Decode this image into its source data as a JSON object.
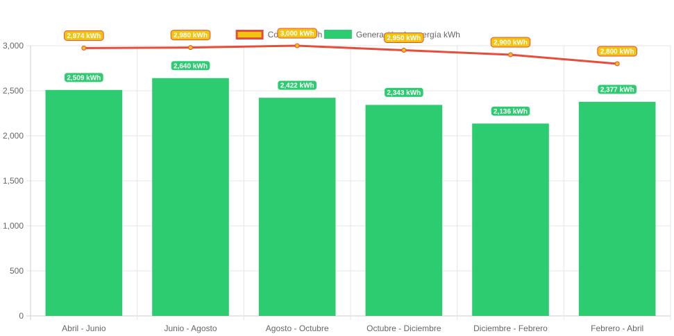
{
  "chart_data": {
    "type": "bar",
    "categories": [
      "Abril - Junio",
      "Junio - Agosto",
      "Agosto - Octubre",
      "Octubre - Diciembre",
      "Diciembre - Febrero",
      "Febrero - Abril"
    ],
    "series": [
      {
        "name": "Consumo kWh",
        "type": "line",
        "values": [
          2974,
          2980,
          3000,
          2950,
          2900,
          2800
        ],
        "labels": [
          "2,974 kWh",
          "2,980 kWh",
          "3,000 kWh",
          "2,950 kWh",
          "2,900 kWh",
          "2,800 kWh"
        ],
        "color": "#e74c3c",
        "fill": "#f1c40f"
      },
      {
        "name": "Generación de energía kWh",
        "type": "bar",
        "values": [
          2509,
          2640,
          2422,
          2343,
          2136,
          2377
        ],
        "labels": [
          "2,509 kWh",
          "2,640 kWh",
          "2,422 kWh",
          "2,343 kWh",
          "2,136 kWh",
          "2,377 kWh"
        ],
        "color": "#2ecc71"
      }
    ],
    "yticks": [
      "0",
      "500",
      "1,000",
      "1,500",
      "2,000",
      "2,500",
      "3,000"
    ],
    "ylim": [
      0,
      3000
    ],
    "grid": true,
    "legend_position": "top"
  }
}
